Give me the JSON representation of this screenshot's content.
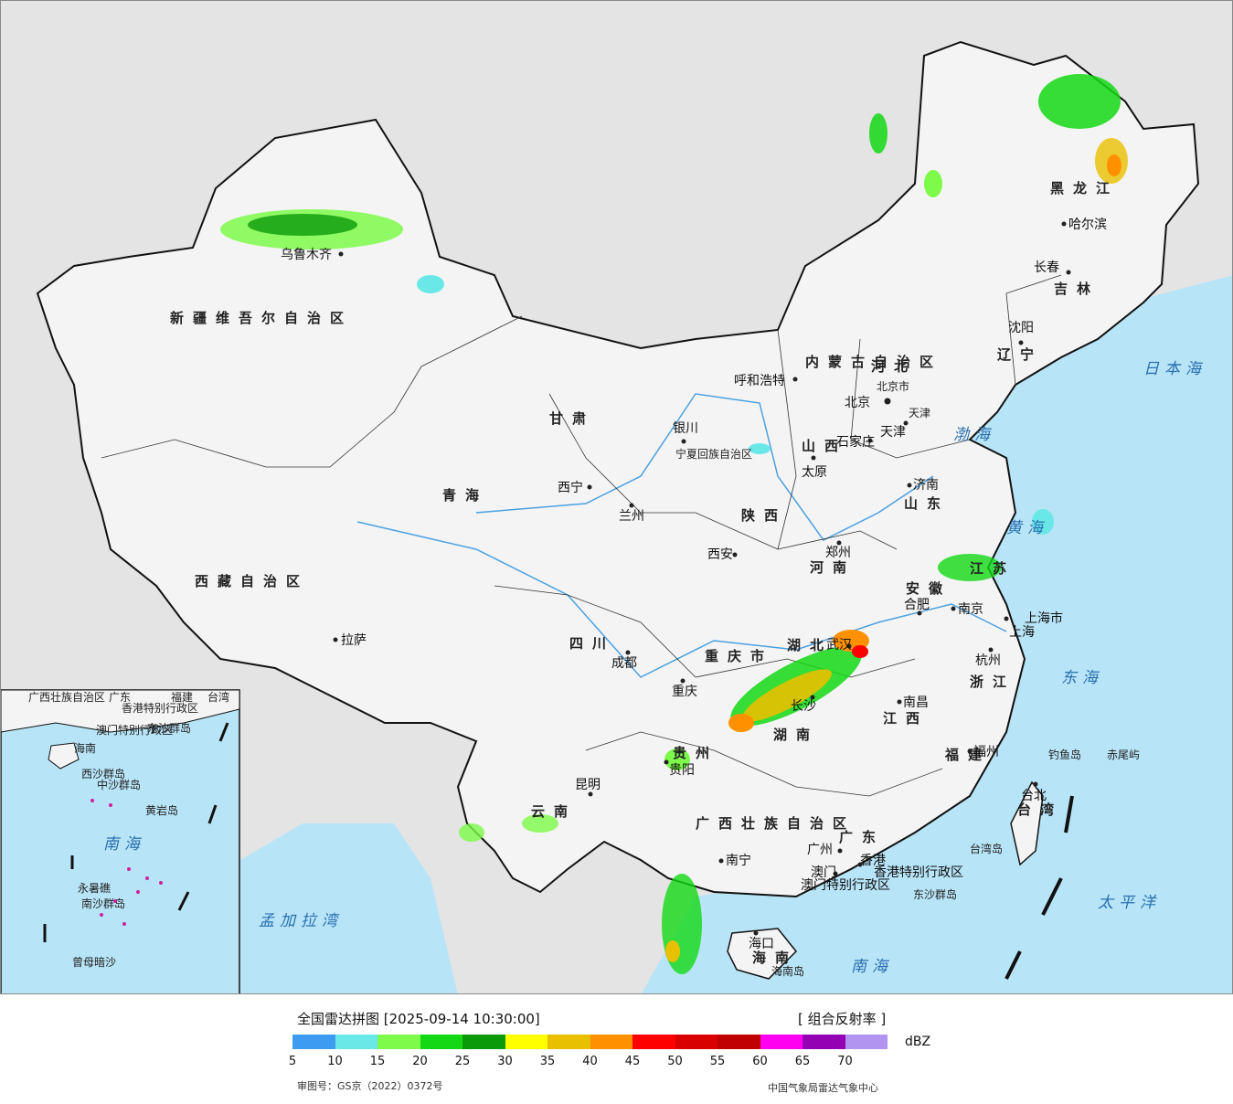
{
  "map": {
    "provinces": [
      "新疆维吾尔自治区",
      "西藏自治区",
      "内蒙古自治区",
      "黑龙江",
      "吉林",
      "辽宁",
      "河北",
      "山西",
      "山东",
      "河南",
      "陕西",
      "甘肃",
      "青海",
      "宁夏回族自治区",
      "四川",
      "重庆市",
      "湖北",
      "安徽",
      "江苏",
      "浙江",
      "江西",
      "湖南",
      "贵州",
      "云南",
      "广西壮族自治区",
      "广东",
      "福建",
      "台湾",
      "海南",
      "北京市",
      "天津",
      "上海市",
      "香港特别行政区",
      "澳门特别行政区"
    ],
    "cities": [
      "乌鲁木齐",
      "哈尔滨",
      "长春",
      "沈阳",
      "呼和浩特",
      "北京",
      "天津",
      "石家庄",
      "太原",
      "济南",
      "银川",
      "西宁",
      "兰州",
      "西安",
      "郑州",
      "合肥",
      "南京",
      "上海",
      "杭州",
      "武汉",
      "成都",
      "重庆",
      "拉萨",
      "长沙",
      "南昌",
      "福州",
      "台北",
      "贵阳",
      "昆明",
      "南宁",
      "广州",
      "澳门",
      "香港",
      "海口"
    ],
    "seas": [
      "日本海",
      "渤海",
      "黄海",
      "东海",
      "南海",
      "太平洋",
      "孟加拉湾"
    ],
    "islands": [
      "钓鱼岛",
      "赤尾屿",
      "台湾岛",
      "东沙群岛",
      "海南岛"
    ],
    "inset_labels": [
      "广西壮族自治区",
      "广东",
      "福建",
      "台湾",
      "香港特别行政区",
      "澳门特别行政区",
      "东沙群岛",
      "海南",
      "西沙群岛",
      "中沙群岛",
      "黄岩岛",
      "南海",
      "南沙群岛",
      "永暑礁",
      "曾母暗沙"
    ],
    "colors": {
      "ocean": "#b7e4f7",
      "land": "#f4f4f4",
      "outside": "#e4e4e4",
      "border": "#111111"
    }
  },
  "legend": {
    "title": "全国雷达拼图 [2025-09-14 10:30:00]",
    "product": "[ 组合反射率 ]",
    "unit": "dBZ",
    "ticks": [
      "5",
      "10",
      "15",
      "20",
      "25",
      "30",
      "35",
      "40",
      "45",
      "50",
      "55",
      "60",
      "65",
      "70"
    ],
    "colors": [
      "#3d9cf0",
      "#6ae8e8",
      "#7dfa4a",
      "#14d814",
      "#0a9a0a",
      "#ffff00",
      "#e8c000",
      "#ff9000",
      "#ff0000",
      "#d80000",
      "#c00000",
      "#ff00f0",
      "#9400b4",
      "#b094f0"
    ],
    "approval": "审图号：GS京（2022）0372号",
    "agency": "中国气象局雷达气象中心"
  }
}
